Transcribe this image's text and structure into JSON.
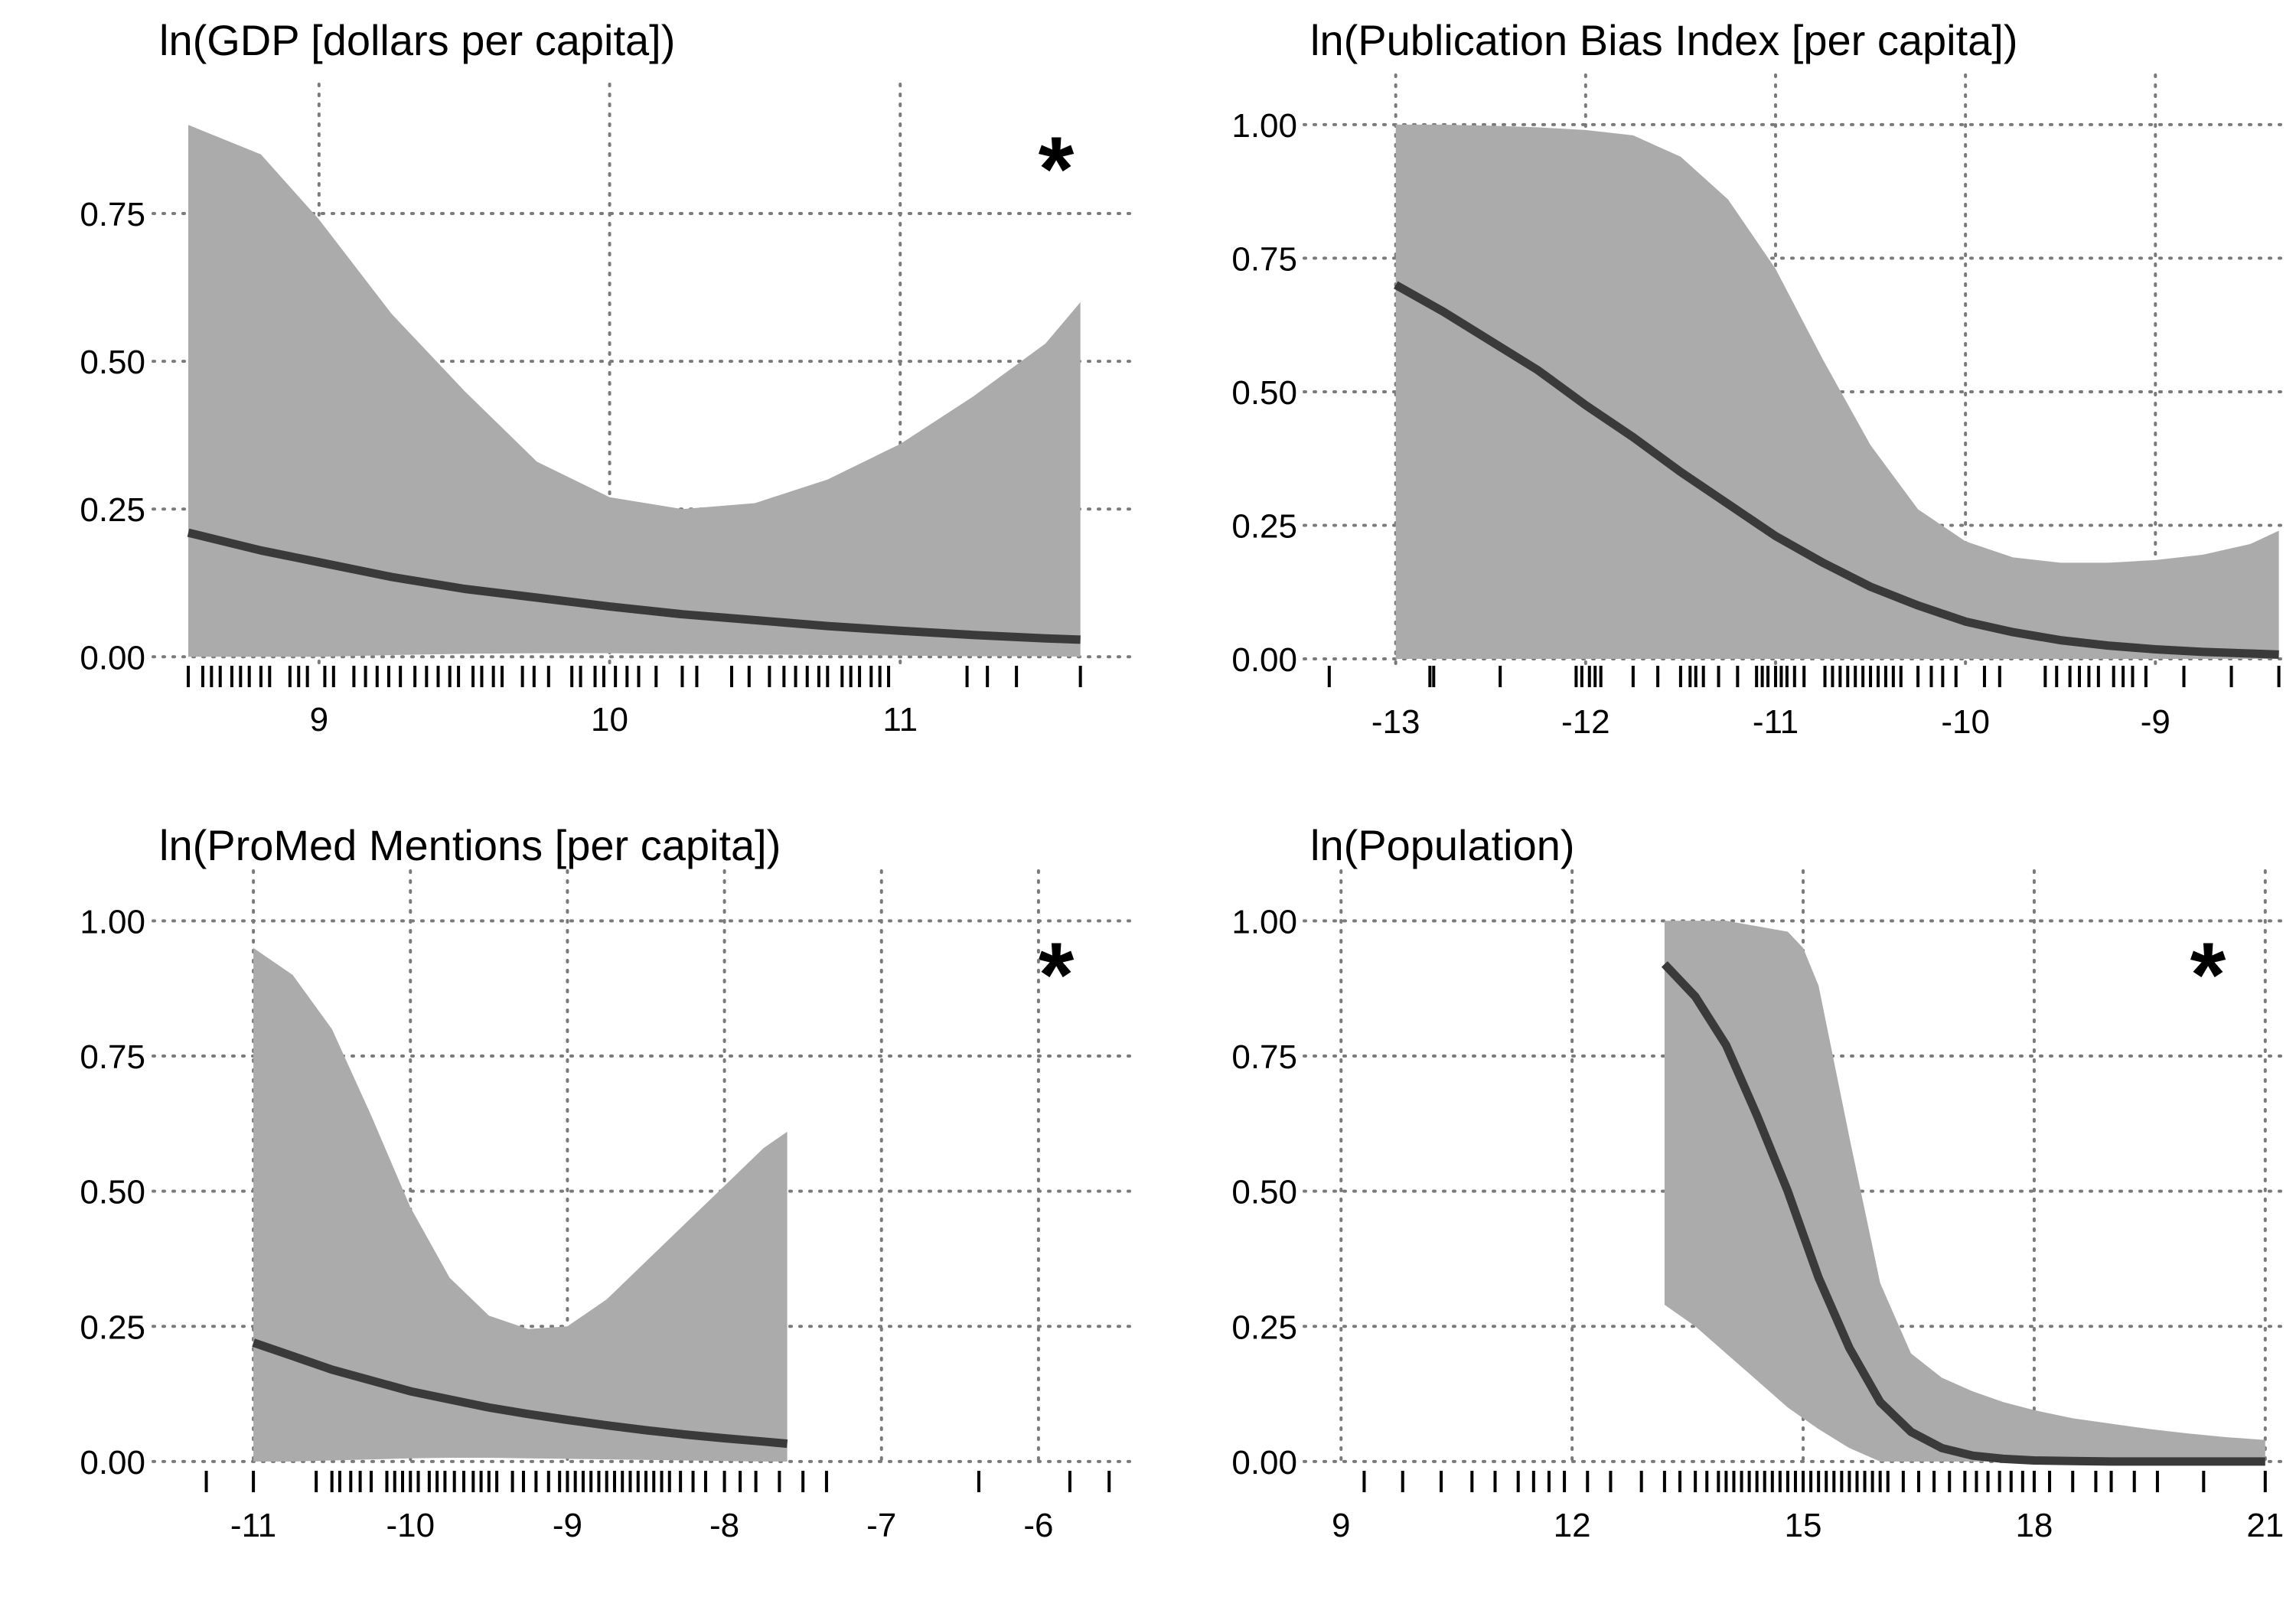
{
  "chart_data": [
    {
      "type": "line",
      "title": "ln(GDP [dollars per capita])",
      "significance_marker": "*",
      "xlim": [
        8.45,
        11.8
      ],
      "ylim": [
        -0.01,
        0.93
      ],
      "x_ticks": [
        9,
        10,
        11
      ],
      "x_tick_labels": [
        "9",
        "10",
        "11"
      ],
      "y_ticks": [
        0,
        0.25,
        0.5,
        0.75
      ],
      "y_tick_labels": [
        "0.00",
        "0.25",
        "0.50",
        "0.75"
      ],
      "grid": true,
      "fit": {
        "x": [
          8.55,
          8.8,
          9.0,
          9.25,
          9.5,
          9.75,
          10.0,
          10.25,
          10.5,
          10.75,
          11.0,
          11.25,
          11.5,
          11.62
        ],
        "y": [
          0.21,
          0.18,
          0.16,
          0.135,
          0.115,
          0.1,
          0.085,
          0.072,
          0.062,
          0.052,
          0.044,
          0.037,
          0.031,
          0.029
        ],
        "lower": [
          0.0,
          0.0,
          0.0,
          0.003,
          0.005,
          0.006,
          0.006,
          0.005,
          0.004,
          0.003,
          0.002,
          0.001,
          0.001,
          0.0
        ],
        "upper": [
          0.9,
          0.85,
          0.74,
          0.58,
          0.45,
          0.33,
          0.27,
          0.25,
          0.26,
          0.3,
          0.36,
          0.44,
          0.53,
          0.6
        ]
      },
      "rug": [
        8.55,
        8.6,
        8.63,
        8.66,
        8.7,
        8.73,
        8.76,
        8.8,
        8.83,
        8.9,
        8.93,
        8.96,
        9.02,
        9.05,
        9.12,
        9.16,
        9.2,
        9.24,
        9.28,
        9.33,
        9.37,
        9.41,
        9.45,
        9.48,
        9.53,
        9.56,
        9.6,
        9.63,
        9.7,
        9.74,
        9.79,
        9.87,
        9.9,
        9.95,
        9.98,
        10.02,
        10.06,
        10.1,
        10.16,
        10.25,
        10.3,
        10.42,
        10.48,
        10.55,
        10.6,
        10.64,
        10.68,
        10.72,
        10.75,
        10.8,
        10.83,
        10.86,
        10.9,
        10.93,
        10.96,
        11.23,
        11.3,
        11.4,
        11.62
      ]
    },
    {
      "type": "line",
      "title": "ln(Publication Bias Index [per capita])",
      "significance_marker": "",
      "xlim": [
        -13.45,
        -8.3
      ],
      "ylim": [
        -0.01,
        1.05
      ],
      "x_ticks": [
        -13,
        -12,
        -11,
        -10,
        -9
      ],
      "x_tick_labels": [
        "-13",
        "-12",
        "-11",
        "-10",
        "-9"
      ],
      "y_ticks": [
        0,
        0.25,
        0.5,
        0.75,
        1.0
      ],
      "y_tick_labels": [
        "0.00",
        "0.25",
        "0.50",
        "0.75",
        "1.00"
      ],
      "grid": true,
      "fit": {
        "x": [
          -13.0,
          -12.75,
          -12.5,
          -12.25,
          -12.0,
          -11.75,
          -11.5,
          -11.25,
          -11.0,
          -10.75,
          -10.5,
          -10.25,
          -10.0,
          -9.75,
          -9.5,
          -9.25,
          -9.0,
          -8.75,
          -8.5,
          -8.35
        ],
        "y": [
          0.7,
          0.65,
          0.595,
          0.54,
          0.475,
          0.415,
          0.35,
          0.29,
          0.23,
          0.18,
          0.135,
          0.1,
          0.07,
          0.05,
          0.035,
          0.025,
          0.018,
          0.013,
          0.01,
          0.008
        ],
        "lower": [
          0,
          0,
          0,
          0,
          0,
          0,
          0,
          0,
          0,
          0,
          0,
          0,
          0,
          0,
          0,
          0,
          0,
          0,
          0,
          0
        ],
        "upper": [
          1.0,
          1.0,
          0.998,
          0.995,
          0.99,
          0.98,
          0.94,
          0.86,
          0.73,
          0.56,
          0.4,
          0.28,
          0.22,
          0.19,
          0.18,
          0.18,
          0.185,
          0.195,
          0.215,
          0.24
        ]
      },
      "rug": [
        -13.35,
        -12.82,
        -12.8,
        -12.45,
        -12.05,
        -12.02,
        -11.98,
        -11.95,
        -11.92,
        -11.75,
        -11.62,
        -11.5,
        -11.45,
        -11.42,
        -11.38,
        -11.3,
        -11.2,
        -11.1,
        -11.07,
        -11.04,
        -11.0,
        -10.97,
        -10.94,
        -10.9,
        -10.85,
        -10.74,
        -10.7,
        -10.66,
        -10.62,
        -10.58,
        -10.54,
        -10.5,
        -10.46,
        -10.42,
        -10.38,
        -10.34,
        -10.25,
        -10.18,
        -10.12,
        -10.05,
        -9.9,
        -9.82,
        -9.58,
        -9.52,
        -9.45,
        -9.4,
        -9.35,
        -9.3,
        -9.22,
        -9.17,
        -9.12,
        -9.05,
        -8.85,
        -8.6,
        -8.35
      ]
    },
    {
      "type": "line",
      "title": "ln(ProMed Mentions [per capita])",
      "significance_marker": "*",
      "xlim": [
        -11.6,
        -5.4
      ],
      "ylim": [
        -0.01,
        1.05
      ],
      "x_ticks": [
        -11,
        -10,
        -9,
        -8,
        -7,
        -6
      ],
      "x_tick_labels": [
        "-11",
        "-10",
        "-9",
        "-8",
        "-7",
        "-6"
      ],
      "y_ticks": [
        0,
        0.25,
        0.5,
        0.75,
        1.0
      ],
      "y_tick_labels": [
        "0.00",
        "0.25",
        "0.50",
        "0.75",
        "1.00"
      ],
      "grid": true,
      "fit": {
        "x": [
          -11.0,
          -10.75,
          -10.5,
          -10.25,
          -10.0,
          -9.75,
          -9.5,
          -9.25,
          -9.0,
          -8.75,
          -8.5,
          -8.25,
          -8.0,
          -7.75,
          -7.6
        ],
        "y": [
          0.22,
          0.195,
          0.17,
          0.15,
          0.13,
          0.115,
          0.1,
          0.088,
          0.077,
          0.067,
          0.058,
          0.05,
          0.043,
          0.037,
          0.033
        ],
        "lower": [
          0.0,
          0.0,
          0.002,
          0.004,
          0.006,
          0.007,
          0.007,
          0.006,
          0.005,
          0.004,
          0.003,
          0.002,
          0.001,
          0.0,
          0.0
        ],
        "upper": [
          0.95,
          0.9,
          0.8,
          0.64,
          0.47,
          0.34,
          0.27,
          0.245,
          0.25,
          0.3,
          0.37,
          0.44,
          0.51,
          0.58,
          0.61
        ]
      },
      "rug": [
        -11.3,
        -11.0,
        -10.6,
        -10.5,
        -10.45,
        -10.38,
        -10.32,
        -10.25,
        -10.15,
        -10.1,
        -10.05,
        -10.0,
        -9.95,
        -9.88,
        -9.83,
        -9.78,
        -9.72,
        -9.66,
        -9.6,
        -9.55,
        -9.5,
        -9.45,
        -9.35,
        -9.28,
        -9.2,
        -9.12,
        -9.05,
        -9.0,
        -8.95,
        -8.9,
        -8.85,
        -8.8,
        -8.75,
        -8.7,
        -8.65,
        -8.6,
        -8.55,
        -8.5,
        -8.45,
        -8.4,
        -8.35,
        -8.28,
        -8.2,
        -8.12,
        -8.0,
        -7.9,
        -7.8,
        -7.65,
        -7.5,
        -7.35,
        -6.38,
        -5.8,
        -5.55
      ]
    },
    {
      "type": "line",
      "title": "ln(Population)",
      "significance_marker": "*",
      "xlim": [
        8.6,
        21.3
      ],
      "ylim": [
        -0.01,
        1.05
      ],
      "x_ticks": [
        9,
        12,
        15,
        18,
        21
      ],
      "x_tick_labels": [
        "9",
        "12",
        "15",
        "18",
        "21"
      ],
      "y_ticks": [
        0,
        0.25,
        0.5,
        0.75,
        1.0
      ],
      "y_tick_labels": [
        "0.00",
        "0.25",
        "0.50",
        "0.75",
        "1.00"
      ],
      "grid": true,
      "fit": {
        "x": [
          13.2,
          13.6,
          14.0,
          14.4,
          14.8,
          15.0,
          15.2,
          15.6,
          16.0,
          16.4,
          16.8,
          17.2,
          17.6,
          18.0,
          18.5,
          19.0,
          19.5,
          20.0,
          20.5,
          21.0
        ],
        "y": [
          0.92,
          0.86,
          0.77,
          0.64,
          0.5,
          0.42,
          0.34,
          0.21,
          0.11,
          0.055,
          0.025,
          0.011,
          0.005,
          0.002,
          0.001,
          0.0,
          0.0,
          0.0,
          0.0,
          0.0
        ],
        "lower": [
          0.29,
          0.25,
          0.2,
          0.15,
          0.1,
          0.08,
          0.06,
          0.025,
          0.0,
          0.0,
          0.0,
          0.0,
          0.0,
          0.0,
          0.0,
          0.0,
          0.0,
          0.0,
          0.0,
          0.0
        ],
        "upper": [
          1.0,
          1.0,
          1.0,
          0.99,
          0.98,
          0.95,
          0.88,
          0.6,
          0.33,
          0.2,
          0.155,
          0.13,
          0.11,
          0.095,
          0.08,
          0.07,
          0.06,
          0.052,
          0.045,
          0.04
        ]
      },
      "rug": [
        9.3,
        9.8,
        10.3,
        10.7,
        11.0,
        11.3,
        11.5,
        11.7,
        11.9,
        12.2,
        12.5,
        12.9,
        13.2,
        13.4,
        13.6,
        13.75,
        13.9,
        14.0,
        14.1,
        14.2,
        14.3,
        14.4,
        14.5,
        14.6,
        14.7,
        14.8,
        14.9,
        15.0,
        15.1,
        15.2,
        15.3,
        15.4,
        15.5,
        15.6,
        15.7,
        15.8,
        15.9,
        16.0,
        16.1,
        16.3,
        16.5,
        16.7,
        16.9,
        17.1,
        17.25,
        17.4,
        17.55,
        17.7,
        17.85,
        18.0,
        18.2,
        18.5,
        18.8,
        19.0,
        19.3,
        19.6,
        20.2,
        21.0
      ]
    }
  ]
}
